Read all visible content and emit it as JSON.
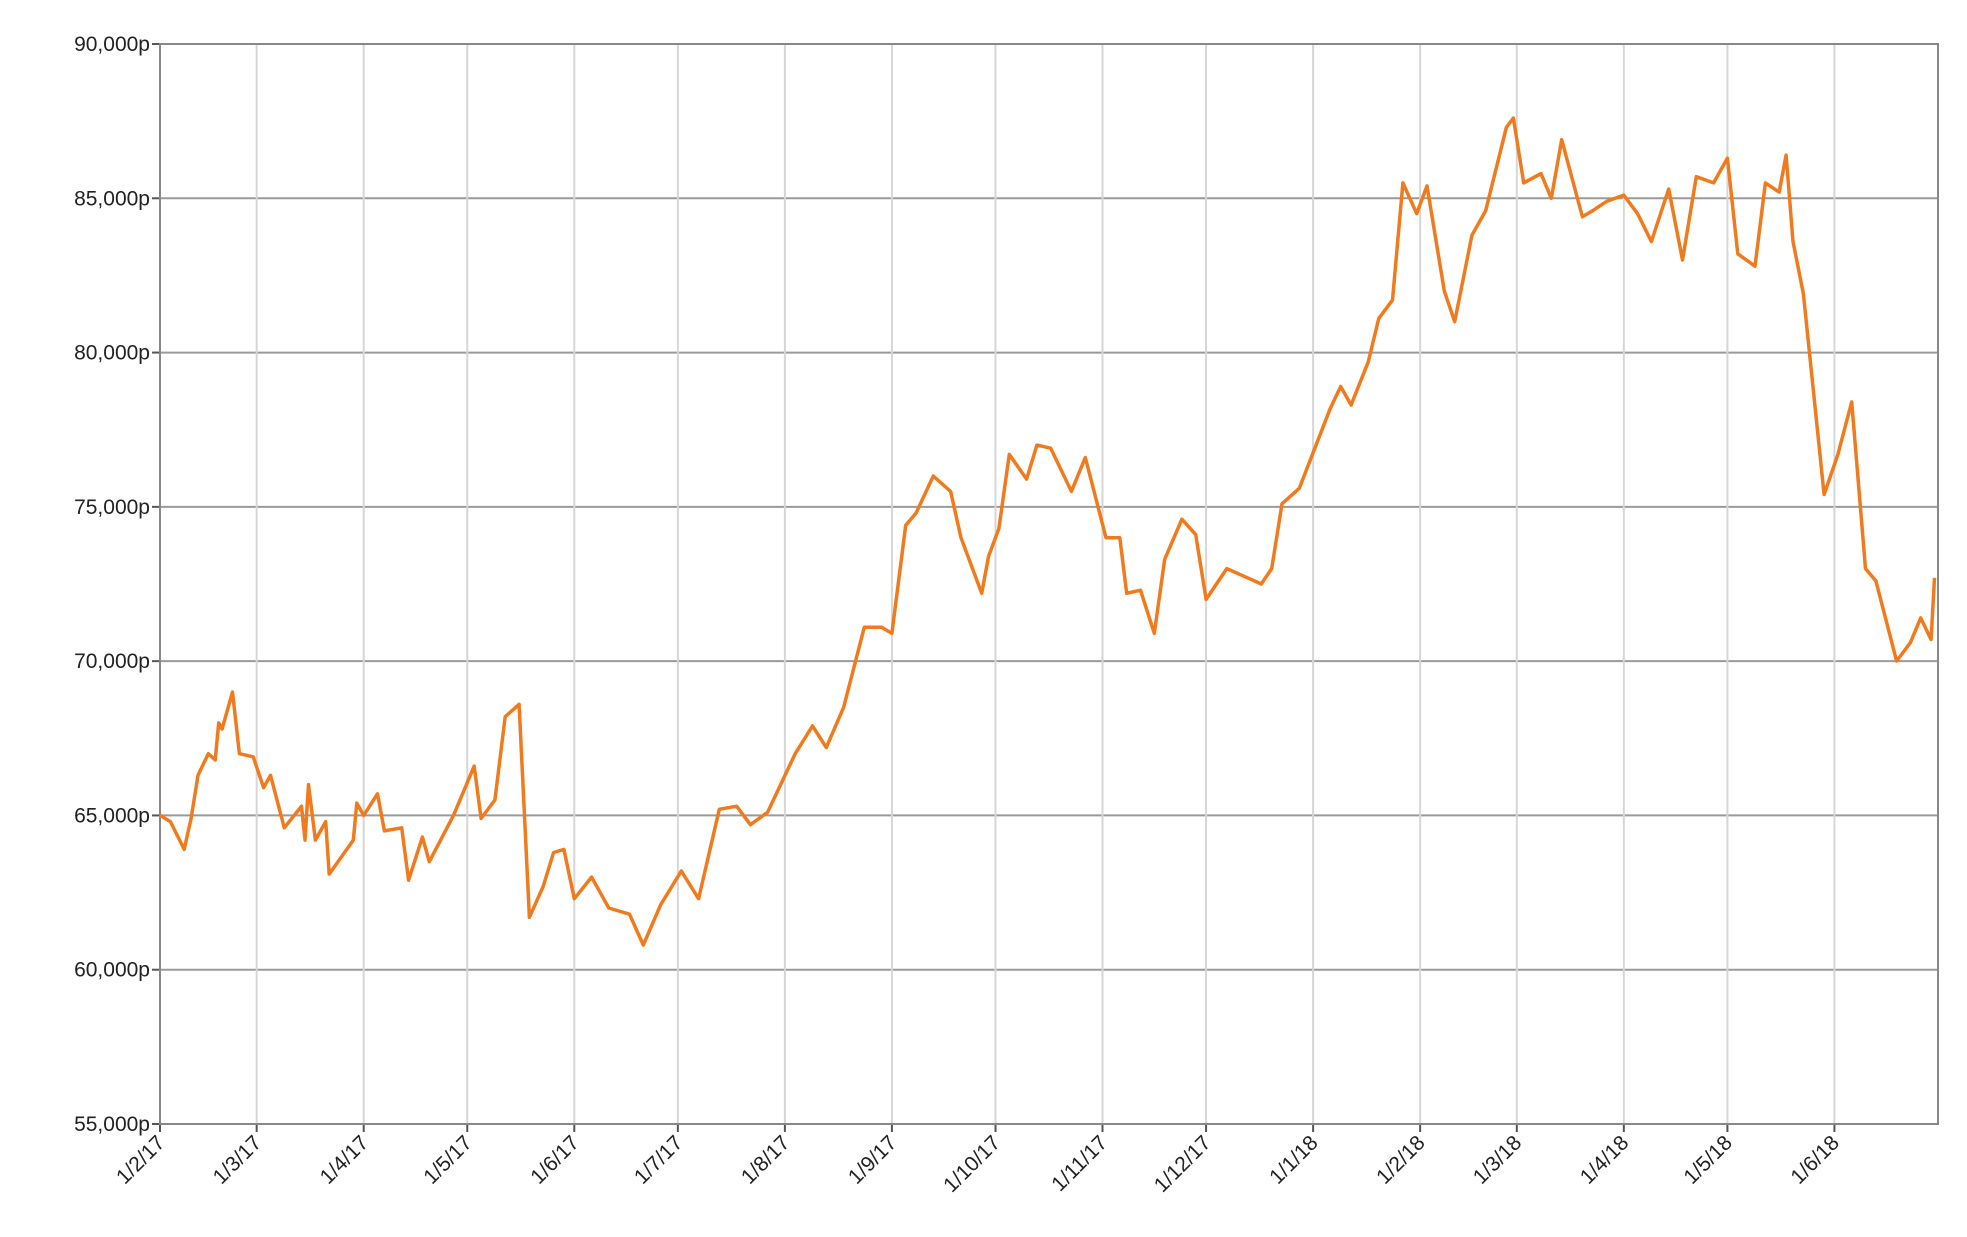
{
  "chart_data": {
    "type": "line",
    "x": [
      "1/2/17",
      "4/2/17",
      "8/2/17",
      "10/2/17",
      "12/2/17",
      "15/2/17",
      "17/2/17",
      "18/2/17",
      "19/2/17",
      "22/2/17",
      "24/2/17",
      "28/2/17",
      "3/3/17",
      "5/3/17",
      "9/3/17",
      "14/3/17",
      "15/3/17",
      "16/3/17",
      "18/3/17",
      "21/3/17",
      "22/3/17",
      "29/3/17",
      "30/3/17",
      "1/4/17",
      "5/4/17",
      "7/4/17",
      "12/4/17",
      "14/4/17",
      "18/4/17",
      "20/4/17",
      "27/4/17",
      "3/5/17",
      "5/5/17",
      "9/5/17",
      "12/5/17",
      "16/5/17",
      "19/5/17",
      "23/5/17",
      "26/5/17",
      "29/5/17",
      "1/6/17",
      "6/6/17",
      "11/6/17",
      "17/6/17",
      "21/6/17",
      "26/6/17",
      "2/7/17",
      "7/7/17",
      "13/7/17",
      "18/7/17",
      "22/7/17",
      "27/7/17",
      "4/8/17",
      "9/8/17",
      "13/8/17",
      "18/8/17",
      "24/8/17",
      "29/8/17",
      "1/9/17",
      "5/9/17",
      "8/9/17",
      "13/9/17",
      "18/9/17",
      "21/9/17",
      "27/9/17",
      "29/9/17",
      "2/10/17",
      "5/10/17",
      "10/10/17",
      "13/10/17",
      "17/10/17",
      "23/10/17",
      "27/10/17",
      "2/11/17",
      "6/11/17",
      "8/11/17",
      "12/11/17",
      "16/11/17",
      "19/11/17",
      "24/11/17",
      "28/11/17",
      "1/12/17",
      "7/12/17",
      "13/12/17",
      "17/12/17",
      "20/12/17",
      "23/12/17",
      "28/12/17",
      "6/1/18",
      "9/1/18",
      "12/1/18",
      "17/1/18",
      "20/1/18",
      "24/1/18",
      "27/1/18",
      "31/1/18",
      "3/2/18",
      "8/2/18",
      "11/2/18",
      "16/2/18",
      "20/2/18",
      "26/2/18",
      "28/2/18",
      "3/3/18",
      "8/3/18",
      "11/3/18",
      "14/3/18",
      "20/3/18",
      "23/3/18",
      "27/3/18",
      "1/4/18",
      "5/4/18",
      "9/4/18",
      "14/4/18",
      "18/4/18",
      "22/4/18",
      "27/4/18",
      "1/5/18",
      "4/5/18",
      "9/5/18",
      "12/5/18",
      "16/5/18",
      "18/5/18",
      "20/5/18",
      "23/5/18",
      "29/5/18",
      "2/6/18",
      "6/6/18",
      "10/6/18",
      "13/6/18",
      "19/6/18",
      "23/6/18",
      "26/6/18",
      "29/6/18",
      "30/6/18"
    ],
    "series": [
      {
        "color": "#f07b1f",
        "values": [
          65000,
          64800,
          63900,
          64900,
          66300,
          67000,
          66800,
          68000,
          67800,
          69000,
          67000,
          66900,
          65900,
          66300,
          64600,
          65300,
          64200,
          66000,
          64200,
          64800,
          63100,
          64200,
          65400,
          65000,
          65700,
          64500,
          64600,
          62900,
          64300,
          63500,
          65000,
          66600,
          64900,
          65500,
          68200,
          68600,
          61700,
          62700,
          63800,
          63900,
          62300,
          63000,
          62000,
          61800,
          60800,
          62100,
          63200,
          62300,
          65200,
          65300,
          64700,
          65100,
          67000,
          67900,
          67200,
          68500,
          71100,
          71100,
          70900,
          74400,
          74800,
          76000,
          75500,
          74000,
          72200,
          73400,
          74300,
          76700,
          75900,
          77000,
          76900,
          75500,
          76600,
          74000,
          74000,
          72200,
          72300,
          70900,
          73300,
          74600,
          74100,
          72000,
          73000,
          72700,
          72500,
          73000,
          75100,
          75600,
          78200,
          78900,
          78300,
          79700,
          81100,
          81700,
          85500,
          84500,
          85400,
          82000,
          81000,
          83800,
          84600,
          87300,
          87600,
          85500,
          85800,
          85000,
          86900,
          84400,
          84600,
          84900,
          85100,
          84500,
          83600,
          85300,
          83000,
          85700,
          85500,
          86300,
          83200,
          82800,
          85500,
          85200,
          86400,
          83600,
          81900,
          75400,
          76700,
          78400,
          73000,
          72600,
          70000,
          70600,
          71400,
          70700,
          72700
        ]
      }
    ],
    "xlim": [
      "1/2/17",
      "1/7/18"
    ],
    "xticks": [
      "1/2/17",
      "1/3/17",
      "1/4/17",
      "1/5/17",
      "1/6/17",
      "1/7/17",
      "1/8/17",
      "1/9/17",
      "1/10/17",
      "1/11/17",
      "1/12/17",
      "1/1/18",
      "1/2/18",
      "1/3/18",
      "1/4/18",
      "1/5/18",
      "1/6/18"
    ],
    "ylim": [
      55000,
      90000
    ],
    "yticks": [
      {
        "value": 55000,
        "label": "55,000p"
      },
      {
        "value": 60000,
        "label": "60,000p"
      },
      {
        "value": 65000,
        "label": "65,000p"
      },
      {
        "value": 70000,
        "label": "70,000p"
      },
      {
        "value": 75000,
        "label": "75,000p"
      },
      {
        "value": 80000,
        "label": "80,000p"
      },
      {
        "value": 85000,
        "label": "85,000p"
      },
      {
        "value": 90000,
        "label": "90,000p"
      }
    ],
    "grid": true
  }
}
